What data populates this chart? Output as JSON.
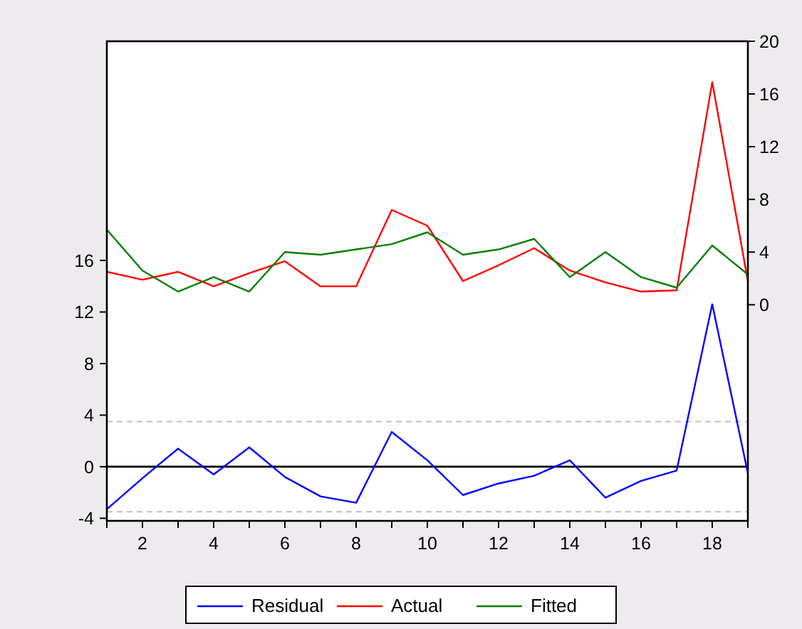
{
  "chart_data": {
    "type": "line",
    "x": [
      1,
      2,
      3,
      4,
      5,
      6,
      7,
      8,
      9,
      10,
      11,
      12,
      13,
      14,
      15,
      16,
      17,
      18,
      19
    ],
    "xlim": [
      1,
      19
    ],
    "xticks": [
      {
        "value": 1,
        "label": null
      },
      2,
      {
        "value": 3,
        "label": null
      },
      4,
      {
        "value": 5,
        "label": null
      },
      6,
      {
        "value": 7,
        "label": null
      },
      8,
      {
        "value": 9,
        "label": null
      },
      10,
      {
        "value": 11,
        "label": null
      },
      12,
      {
        "value": 13,
        "label": null
      },
      14,
      {
        "value": 15,
        "label": null
      },
      16,
      {
        "value": 17,
        "label": null
      },
      18,
      {
        "value": 19,
        "label": null
      }
    ],
    "ylim": [
      -4.2,
      33
    ],
    "yticks": [
      -4,
      0,
      4,
      8,
      12,
      16
    ],
    "y2lim": [
      -16.4,
      20
    ],
    "y2ticks": [
      0,
      4,
      8,
      12,
      16,
      20
    ],
    "series": [
      {
        "name": "Residual",
        "color": "#0000ff",
        "axis": "y",
        "values": [
          -3.3,
          -0.9,
          1.4,
          -0.6,
          1.5,
          -0.8,
          -2.3,
          -2.8,
          2.7,
          0.5,
          -2.2,
          -1.3,
          -0.7,
          0.5,
          -2.4,
          -1.1,
          -0.3,
          12.6,
          -0.5
        ]
      },
      {
        "name": "Actual",
        "color": "#ff0000",
        "axis": "y2",
        "values": [
          2.5,
          1.9,
          2.5,
          1.4,
          2.4,
          3.3,
          1.4,
          1.4,
          7.2,
          6.0,
          1.8,
          3.0,
          4.3,
          2.6,
          1.7,
          1.0,
          1.1,
          16.9,
          1.8
        ]
      },
      {
        "name": "Fitted",
        "color": "#008000",
        "axis": "y2",
        "values": [
          5.7,
          2.6,
          1.0,
          2.1,
          1.0,
          4.0,
          3.8,
          4.2,
          4.6,
          5.5,
          3.8,
          4.2,
          5.0,
          2.1,
          4.0,
          2.1,
          1.3,
          4.5,
          2.3
        ]
      }
    ],
    "ref_lines": [
      {
        "axis": "y",
        "value": 0,
        "color": "#000000",
        "line_style": "solid"
      },
      {
        "axis": "y",
        "value": 3.5,
        "color": "#c0c0c0",
        "line_style": "dashed"
      },
      {
        "axis": "y",
        "value": -3.5,
        "color": "#c0c0c0",
        "line_style": "dashed"
      }
    ],
    "grid": false,
    "legend": "bottom"
  }
}
